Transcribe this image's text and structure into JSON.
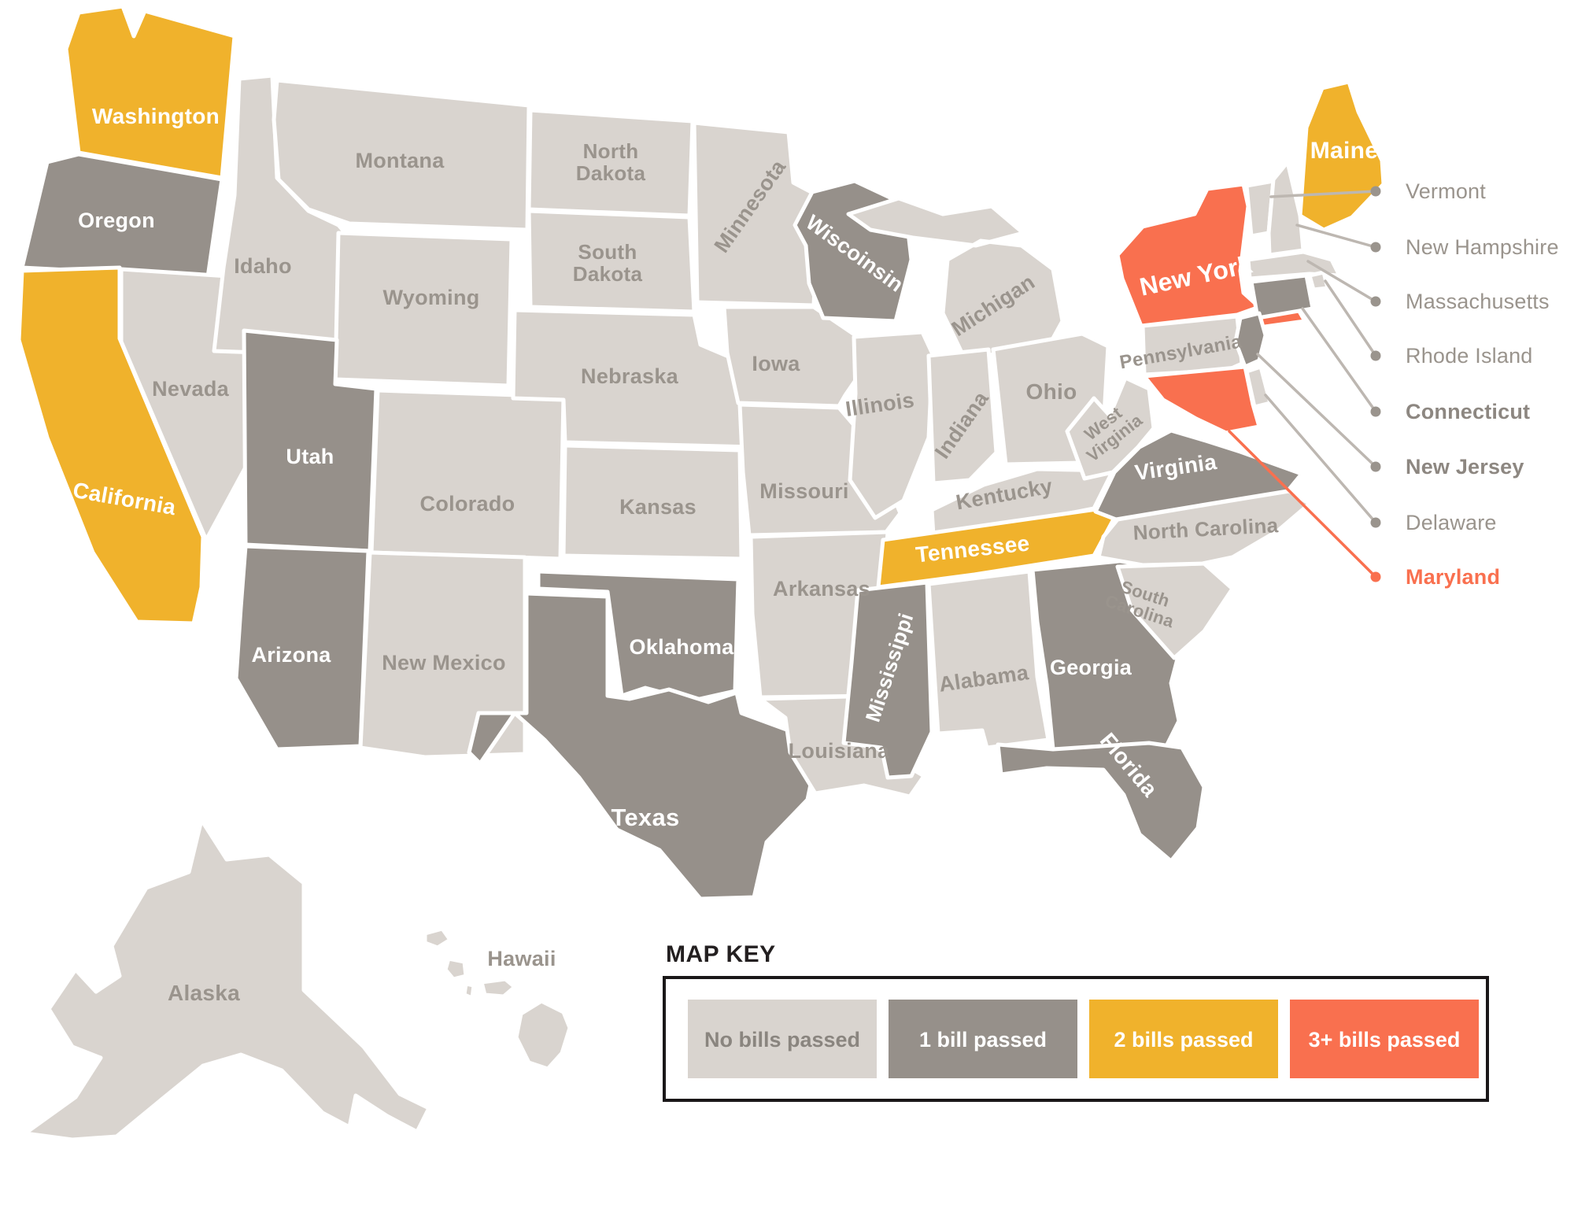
{
  "map": {
    "state_label_color": "#9A948D",
    "categories": [
      {
        "id": "none",
        "label": "No bills passed",
        "color": "#D9D4CF",
        "label_color": "#8A857F"
      },
      {
        "id": "one",
        "label": "1 bill passed",
        "color": "#96908A",
        "label_color": "#FFFFFF"
      },
      {
        "id": "two",
        "label": "2 bills passed",
        "color": "#F0B22C",
        "label_color": "#FFFFFF"
      },
      {
        "id": "three_plus",
        "label": "3+ bills passed",
        "color": "#F9704F",
        "label_color": "#FFFFFF"
      }
    ],
    "states": [
      {
        "id": "WA",
        "label": "Washington",
        "category": "two"
      },
      {
        "id": "OR",
        "label": "Oregon",
        "category": "one"
      },
      {
        "id": "CA",
        "label": "California",
        "category": "two"
      },
      {
        "id": "NV",
        "label": "Nevada",
        "category": "none"
      },
      {
        "id": "ID",
        "label": "Idaho",
        "category": "none"
      },
      {
        "id": "MT",
        "label": "Montana",
        "category": "none"
      },
      {
        "id": "WY",
        "label": "Wyoming",
        "category": "none"
      },
      {
        "id": "UT",
        "label": "Utah",
        "category": "one"
      },
      {
        "id": "CO",
        "label": "Colorado",
        "category": "none"
      },
      {
        "id": "AZ",
        "label": "Arizona",
        "category": "one"
      },
      {
        "id": "NM",
        "label": "New Mexico",
        "category": "none"
      },
      {
        "id": "ND",
        "label": "North Dakota",
        "category": "none"
      },
      {
        "id": "SD",
        "label": "South Dakota",
        "category": "none"
      },
      {
        "id": "NE",
        "label": "Nebraska",
        "category": "none"
      },
      {
        "id": "KS",
        "label": "Kansas",
        "category": "none"
      },
      {
        "id": "OK",
        "label": "Oklahoma",
        "category": "one"
      },
      {
        "id": "TX",
        "label": "Texas",
        "category": "one"
      },
      {
        "id": "MN",
        "label": "Minnesota",
        "category": "none"
      },
      {
        "id": "IA",
        "label": "Iowa",
        "category": "none"
      },
      {
        "id": "MO",
        "label": "Missouri",
        "category": "none"
      },
      {
        "id": "AR",
        "label": "Arkansas",
        "category": "none"
      },
      {
        "id": "LA",
        "label": "Louisiana",
        "category": "none"
      },
      {
        "id": "WI",
        "label": "Wiscoinsin",
        "category": "one"
      },
      {
        "id": "IL",
        "label": "Illinois",
        "category": "none"
      },
      {
        "id": "MI",
        "label": "Michigan",
        "category": "none"
      },
      {
        "id": "IN",
        "label": "Indiana",
        "category": "none"
      },
      {
        "id": "OH",
        "label": "Ohio",
        "category": "none"
      },
      {
        "id": "KY",
        "label": "Kentucky",
        "category": "none"
      },
      {
        "id": "TN",
        "label": "Tennessee",
        "category": "two"
      },
      {
        "id": "MS",
        "label": "Mississippi",
        "category": "one"
      },
      {
        "id": "AL",
        "label": "Alabama",
        "category": "none"
      },
      {
        "id": "GA",
        "label": "Georgia",
        "category": "one"
      },
      {
        "id": "FL",
        "label": "Florida",
        "category": "one"
      },
      {
        "id": "SC",
        "label": "South Carolina",
        "category": "none"
      },
      {
        "id": "NC",
        "label": "North Carolina",
        "category": "none"
      },
      {
        "id": "VA",
        "label": "Virginia",
        "category": "one"
      },
      {
        "id": "WV",
        "label": "West Virginia",
        "category": "none"
      },
      {
        "id": "PA",
        "label": "Pennsylvania",
        "category": "none"
      },
      {
        "id": "NY",
        "label": "New York",
        "category": "three_plus"
      },
      {
        "id": "ME",
        "label": "Maine",
        "category": "two"
      },
      {
        "id": "VT",
        "label": "",
        "category": "none"
      },
      {
        "id": "NH",
        "label": "",
        "category": "none"
      },
      {
        "id": "MA",
        "label": "",
        "category": "none"
      },
      {
        "id": "RI",
        "label": "",
        "category": "none"
      },
      {
        "id": "CT",
        "label": "",
        "category": "one"
      },
      {
        "id": "NJ",
        "label": "",
        "category": "one"
      },
      {
        "id": "DE",
        "label": "",
        "category": "none"
      },
      {
        "id": "MD",
        "label": "",
        "category": "three_plus"
      },
      {
        "id": "AK",
        "label": "Alaska",
        "category": "none"
      },
      {
        "id": "HI",
        "label": "Hawaii",
        "category": "none"
      }
    ]
  },
  "callouts": [
    {
      "id": "VT",
      "label": "Vermont",
      "bold": false,
      "highlight": false
    },
    {
      "id": "NH",
      "label": "New Hampshire",
      "bold": false,
      "highlight": false
    },
    {
      "id": "MA",
      "label": "Massachusetts",
      "bold": false,
      "highlight": false
    },
    {
      "id": "RI",
      "label": "Rhode Island",
      "bold": false,
      "highlight": false
    },
    {
      "id": "CT",
      "label": "Connecticut",
      "bold": true,
      "highlight": false
    },
    {
      "id": "NJ",
      "label": "New Jersey",
      "bold": true,
      "highlight": false
    },
    {
      "id": "DE",
      "label": "Delaware",
      "bold": false,
      "highlight": false
    },
    {
      "id": "MD",
      "label": "Maryland",
      "bold": true,
      "highlight": true
    }
  ],
  "map_key": {
    "title": "MAP KEY",
    "items": [
      {
        "label": "No bills passed",
        "swatch_color": "#D9D4CF",
        "text_color": "#8A857F"
      },
      {
        "label": "1 bill passed",
        "swatch_color": "#96908A",
        "text_color": "#FFFFFF"
      },
      {
        "label": "2 bills passed",
        "swatch_color": "#F0B22C",
        "text_color": "#FFFFFF"
      },
      {
        "label": "3+ bills passed",
        "swatch_color": "#F9704F",
        "text_color": "#FFFFFF"
      }
    ]
  },
  "colors": {
    "background": "#FFFFFF",
    "state_border": "#FFFFFF",
    "callout_line": "#BDB7B1",
    "callout_dot": "#9A948D",
    "callout_text": "#9A948D",
    "callout_text_strong": "#8D8781",
    "highlight": "#F9704F",
    "key_border": "#1A1718",
    "key_title": "#231F20"
  }
}
